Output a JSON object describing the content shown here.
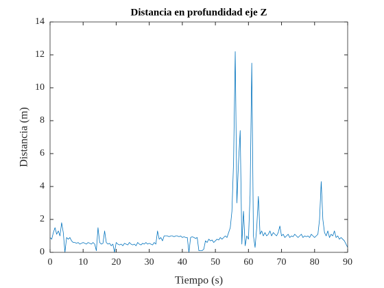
{
  "chart_data": {
    "type": "line",
    "title": "Distancia en profundidad eje Z",
    "x_label": "Tiempo (s)",
    "y_label": "Distancia (m)",
    "xlim": [
      0,
      90
    ],
    "ylim": [
      0,
      14
    ],
    "xticks": [
      0,
      10,
      20,
      30,
      40,
      50,
      60,
      70,
      80,
      90
    ],
    "yticks": [
      0,
      2,
      4,
      6,
      8,
      10,
      12,
      14
    ],
    "grid": false,
    "x": [
      0,
      0.5,
      1,
      1.5,
      2,
      2.5,
      3,
      3.5,
      4,
      4.5,
      5,
      5.5,
      6,
      6.5,
      7,
      7.5,
      8,
      8.5,
      9,
      9.5,
      10,
      10.5,
      11,
      11.5,
      12,
      12.5,
      13,
      13.5,
      14,
      14.5,
      15,
      15.5,
      16,
      16.5,
      17,
      17.5,
      18,
      18.5,
      19,
      19.5,
      20,
      20.5,
      21,
      21.5,
      22,
      22.5,
      23,
      23.5,
      24,
      24.5,
      25,
      25.5,
      26,
      26.5,
      27,
      27.5,
      28,
      28.5,
      29,
      29.5,
      30,
      30.5,
      31,
      31.5,
      32,
      32.5,
      33,
      33.5,
      34,
      34.5,
      35,
      35.5,
      36,
      36.5,
      37,
      37.5,
      38,
      38.5,
      39,
      39.5,
      40,
      40.5,
      41,
      41.5,
      42,
      42.5,
      43,
      43.5,
      44,
      44.5,
      45,
      45.5,
      46,
      46.5,
      47,
      47.5,
      48,
      48.5,
      49,
      49.5,
      50,
      50.5,
      51,
      51.5,
      52,
      52.5,
      53,
      53.5,
      54,
      54.5,
      55,
      55.5,
      56,
      56.5,
      57,
      57.5,
      58,
      58.5,
      59,
      59.5,
      60,
      60.5,
      61,
      61.5,
      62,
      62.5,
      63,
      63.5,
      64,
      64.5,
      65,
      65.5,
      66,
      66.5,
      67,
      67.5,
      68,
      68.5,
      69,
      69.5,
      70,
      70.5,
      71,
      71.5,
      72,
      72.5,
      73,
      73.5,
      74,
      74.5,
      75,
      75.5,
      76,
      76.5,
      77,
      77.5,
      78,
      78.5,
      79,
      79.5,
      80,
      80.5,
      81,
      81.5,
      82,
      82.5,
      83,
      83.5,
      84,
      84.5,
      85,
      85.5,
      86,
      86.5,
      87,
      87.5,
      88,
      88.5,
      89,
      89.5,
      90
    ],
    "series": [
      {
        "color": "#0072bd",
        "values": [
          0.9,
          0.8,
          1.2,
          1.5,
          1.1,
          1.3,
          1.0,
          1.8,
          1.2,
          0.0,
          0.9,
          0.8,
          0.9,
          0.7,
          0.6,
          0.6,
          0.55,
          0.6,
          0.5,
          0.55,
          0.6,
          0.55,
          0.5,
          0.6,
          0.55,
          0.5,
          0.6,
          0.5,
          0.1,
          1.5,
          0.6,
          0.5,
          0.55,
          1.3,
          0.6,
          0.5,
          0.55,
          0.4,
          0.5,
          0.0,
          0.6,
          0.5,
          0.45,
          0.5,
          0.4,
          0.55,
          0.5,
          0.45,
          0.6,
          0.5,
          0.45,
          0.5,
          0.4,
          0.6,
          0.5,
          0.45,
          0.55,
          0.5,
          0.6,
          0.5,
          0.55,
          0.5,
          0.45,
          0.6,
          0.5,
          1.3,
          0.8,
          0.9,
          0.7,
          1.0,
          1.0,
          1.0,
          0.95,
          1.0,
          1.0,
          0.95,
          1.0,
          1.0,
          0.95,
          1.0,
          0.9,
          0.95,
          0.9,
          0.9,
          0.0,
          0.9,
          0.95,
          0.9,
          0.85,
          0.9,
          0.1,
          0.1,
          0.1,
          0.2,
          0.7,
          0.6,
          0.8,
          0.7,
          0.75,
          0.6,
          0.7,
          0.8,
          0.75,
          0.9,
          0.8,
          0.9,
          1.0,
          0.9,
          1.2,
          1.5,
          2.5,
          5.5,
          12.2,
          3.0,
          5.5,
          7.4,
          0.5,
          2.5,
          0.4,
          1.0,
          0.8,
          3.5,
          11.5,
          1.0,
          0.3,
          1.5,
          3.4,
          1.1,
          1.3,
          1.0,
          1.2,
          1.0,
          1.1,
          1.3,
          1.0,
          1.2,
          1.1,
          1.0,
          1.2,
          1.6,
          1.0,
          1.1,
          0.9,
          1.0,
          1.1,
          0.9,
          1.0,
          0.95,
          1.1,
          1.0,
          0.9,
          1.0,
          1.1,
          0.9,
          1.0,
          0.95,
          1.0,
          0.9,
          1.1,
          1.0,
          0.9,
          1.0,
          1.1,
          2.0,
          4.3,
          2.0,
          1.2,
          1.0,
          1.3,
          0.9,
          1.1,
          1.0,
          1.3,
          0.9,
          1.0,
          0.8,
          0.9,
          0.8,
          0.7,
          0.5,
          0.3
        ]
      }
    ]
  }
}
